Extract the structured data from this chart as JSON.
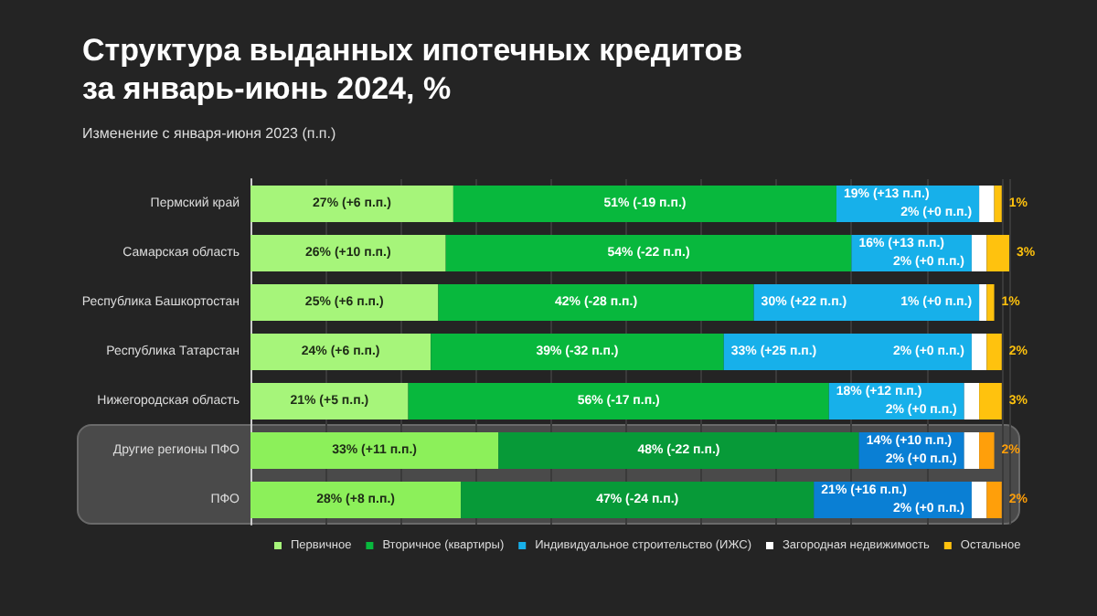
{
  "chart_data": {
    "type": "bar",
    "orientation": "horizontal",
    "stacked": true,
    "title": "Структура выданных ипотечных кредитов\nза январь-июнь 2024, %",
    "subtitle": "Изменение с января-июня 2023 (п.п.)",
    "categories": [
      "Пермский край",
      "Самарская область",
      "Республика Башкортостан",
      "Республика Татарстан",
      "Нижегородская область",
      "Другие регионы ПФО",
      "ПФО"
    ],
    "series": [
      {
        "name": "Первичное",
        "color": "#a6f57a",
        "colors": [
          "#a6f57a",
          "#a6f57a",
          "#a6f57a",
          "#a6f57a",
          "#a6f57a",
          "#8cf05a",
          "#8cf05a"
        ],
        "values": [
          27,
          26,
          25,
          24,
          21,
          33,
          28
        ],
        "value_labels": [
          "27% (+6 п.п.)",
          "26% (+10 п.п.)",
          "25% (+6 п.п.)",
          "24% (+6 п.п.)",
          "21% (+5 п.п.)",
          "33% (+11 п.п.)",
          "28% (+8 п.п.)"
        ]
      },
      {
        "name": "Вторичное (квартиры)",
        "color": "#08b83d",
        "colors": [
          "#08b83d",
          "#08b83d",
          "#08b83d",
          "#08b83d",
          "#08b83d",
          "#079a38",
          "#079a38"
        ],
        "values": [
          51,
          54,
          42,
          39,
          56,
          48,
          47
        ],
        "value_labels": [
          "51% (-19 п.п.)",
          "54% (-22 п.п.)",
          "42% (-28 п.п.)",
          "39% (-32 п.п.)",
          "56% (-17 п.п.)",
          "48% (-22 п.п.)",
          "47% (-24 п.п.)"
        ]
      },
      {
        "name": "Индивидуальное строительство (ИЖС)",
        "color": "#17b0ea",
        "colors": [
          "#17b0ea",
          "#17b0ea",
          "#17b0ea",
          "#17b0ea",
          "#17b0ea",
          "#0a7fd4",
          "#0a7fd4"
        ],
        "values": [
          19,
          16,
          30,
          33,
          18,
          14,
          21
        ],
        "value_labels": [
          "19% (+13 п.п.)",
          "16% (+13 п.п.)",
          "30% (+22 п.п.)",
          "33% (+25 п.п.)",
          "18% (+12 п.п.)",
          "14% (+10 п.п.)",
          "21% (+16 п.п.)"
        ]
      },
      {
        "name": "Загородная недвижимость",
        "color": "#ffffff",
        "values": [
          2,
          2,
          1,
          2,
          2,
          2,
          2
        ],
        "value_labels": [
          "2% (+0 п.п.)",
          "2% (+0 п.п.)",
          "1% (+0 п.п.)",
          "2% (+0 п.п.)",
          "2% (+0 п.п.)",
          "2% (+0 п.п.)",
          "2% (+0 п.п.)"
        ]
      },
      {
        "name": "Остальное",
        "color": "#ffc20e",
        "colors": [
          "#ffc20e",
          "#ffc20e",
          "#ffc20e",
          "#ffc20e",
          "#ffc20e",
          "#ff9f0a",
          "#ff9f0a"
        ],
        "values": [
          1,
          3,
          1,
          2,
          3,
          2,
          2
        ],
        "value_labels": [
          "1%",
          "3%",
          "1%",
          "2%",
          "3%",
          "2%",
          "2%"
        ]
      }
    ],
    "grid": "x",
    "legend": "bottom",
    "tick_labels": "y"
  }
}
